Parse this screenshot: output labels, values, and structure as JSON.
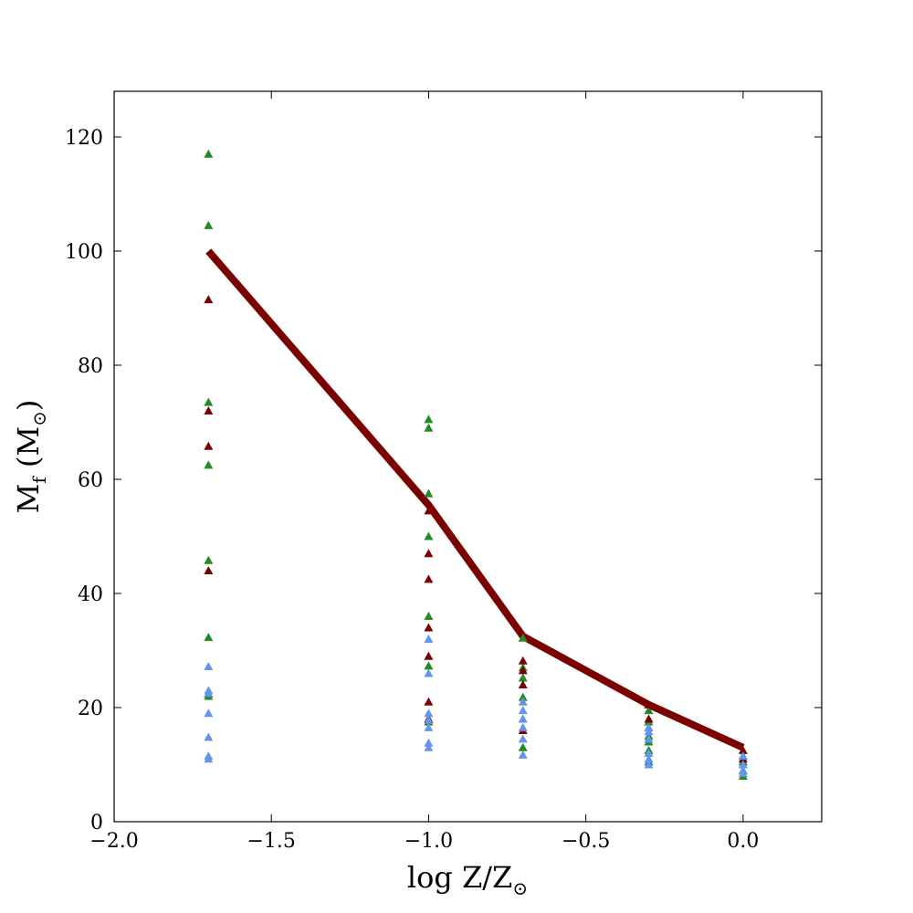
{
  "chart_data": {
    "type": "scatter",
    "xlabel": {
      "main": "log Z/Z",
      "sub": "⊙"
    },
    "ylabel": {
      "main": "M",
      "sub1": "f",
      "mid": " (M",
      "sub2": "⊙",
      "end": ")"
    },
    "xlim": [
      -2.0,
      0.25
    ],
    "ylim": [
      0,
      128
    ],
    "x_ticks": [
      -2.0,
      -1.5,
      -1.0,
      -0.5,
      0.0
    ],
    "x_tick_labels": [
      "−2.0",
      "−1.5",
      "−1.0",
      "−0.5",
      "0.0"
    ],
    "y_ticks": [
      0,
      20,
      40,
      60,
      80,
      100,
      120
    ],
    "y_tick_labels": [
      "0",
      "20",
      "40",
      "60",
      "80",
      "100",
      "120"
    ],
    "grid": false,
    "line": {
      "color": "#7b0000",
      "x": [
        -1.7,
        -1.0,
        -0.7,
        -0.3,
        0.0
      ],
      "y": [
        100,
        55.5,
        32.5,
        20.5,
        13
      ]
    },
    "series": [
      {
        "color": "#228b22",
        "marker": "triangle",
        "x": [
          -1.7,
          -1.7,
          -1.7,
          -1.7,
          -1.7,
          -1.7,
          -1.7,
          -1.7,
          -1.0,
          -1.0,
          -1.0,
          -1.0,
          -1.0,
          -1.0,
          -1.0,
          -1.0,
          -0.7,
          -0.7,
          -0.7,
          -0.7,
          -0.7,
          -0.7,
          -0.3,
          -0.3,
          -0.3,
          -0.3,
          -0.3,
          -0.3,
          0.0,
          0.0,
          0.0,
          0.0,
          0.0
        ],
        "y": [
          117,
          104.5,
          73.5,
          62.5,
          45.8,
          32.3,
          22,
          22.4,
          70.5,
          69,
          57.5,
          50,
          36,
          27.3,
          18,
          17.5,
          32.2,
          27,
          25.2,
          21.8,
          18,
          13,
          19.5,
          17.5,
          15,
          14,
          12.5,
          10.5,
          11.5,
          10.5,
          10,
          9,
          8
        ]
      },
      {
        "color": "#7b0000",
        "marker": "triangle",
        "x": [
          -1.7,
          -1.7,
          -1.7,
          -1.7,
          -1.0,
          -1.0,
          -1.0,
          -1.0,
          -1.0,
          -1.0,
          -1.0,
          -0.7,
          -0.7,
          -0.7,
          -0.7,
          -0.3,
          -0.3,
          -0.3,
          0.0,
          0.0
        ],
        "y": [
          91.5,
          72,
          65.8,
          44,
          54.5,
          47,
          42.5,
          34,
          29,
          21,
          18,
          28.2,
          26.5,
          24,
          16,
          20.5,
          18,
          16.5,
          12.5,
          11
        ]
      },
      {
        "color": "#6495ed",
        "marker": "triangle",
        "x": [
          -1.7,
          -1.7,
          -1.7,
          -1.7,
          -1.7,
          -1.7,
          -1.7,
          -1.0,
          -1.0,
          -1.0,
          -1.0,
          -1.0,
          -1.0,
          -1.0,
          -0.7,
          -0.7,
          -0.7,
          -0.7,
          -0.7,
          -0.7,
          -0.3,
          -0.3,
          -0.3,
          -0.3,
          -0.3,
          -0.3,
          0.0,
          0.0,
          0.0,
          0.0
        ],
        "y": [
          27.2,
          23,
          22.5,
          19,
          14.8,
          11.5,
          11,
          32,
          26,
          19,
          17.8,
          16.5,
          13.8,
          13,
          21,
          19.5,
          18,
          16.5,
          14.5,
          11.7,
          16.5,
          15.8,
          14.5,
          12,
          11,
          10,
          11.5,
          10,
          9,
          8.5
        ]
      }
    ]
  }
}
